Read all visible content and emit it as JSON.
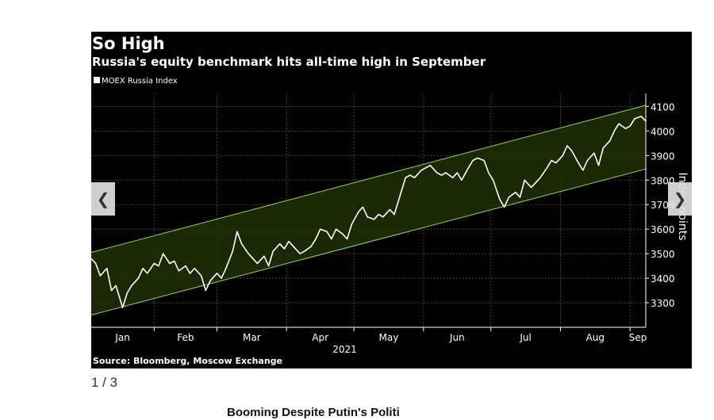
{
  "colors": {
    "panel_bg": "#000000",
    "line": "#ffffff",
    "channel_fill": "#1e2e08",
    "channel_border": "#9ccf7a",
    "grid": "#6a6a6a",
    "text": "#ffffff"
  },
  "slideshow": {
    "prev_icon": "chevron-left-icon",
    "next_icon": "chevron-right-icon",
    "counter": "1 / 3",
    "next_headline": "Booming Despite Putin's Politi"
  },
  "chart_data": {
    "type": "line",
    "title": "So High",
    "subtitle": "Russia's equity benchmark hits all-time high in September",
    "source": "Source: Bloomberg, Moscow Exchange",
    "xlabel": "2021",
    "ylabel": "Index points",
    "ylim": [
      3200,
      4140
    ],
    "yticks": [
      3300,
      3400,
      3500,
      3600,
      3700,
      3800,
      3900,
      4000,
      4100
    ],
    "xlim": [
      "2021-01-04",
      "2021-09-08"
    ],
    "xticks": [
      {
        "label": "Jan",
        "date": "2021-01-01"
      },
      {
        "label": "Feb",
        "date": "2021-02-01"
      },
      {
        "label": "Mar",
        "date": "2021-03-01"
      },
      {
        "label": "Apr",
        "date": "2021-04-01"
      },
      {
        "label": "May",
        "date": "2021-05-01"
      },
      {
        "label": "Jun",
        "date": "2021-06-01"
      },
      {
        "label": "Jul",
        "date": "2021-07-01"
      },
      {
        "label": "Aug",
        "date": "2021-08-01"
      },
      {
        "label": "Sep",
        "date": "2021-09-01"
      }
    ],
    "grid": true,
    "legend": "top-left",
    "channel": {
      "upper": [
        [
          "2021-01-04",
          3505
        ],
        [
          "2021-09-08",
          4105
        ]
      ],
      "lower": [
        [
          "2021-01-04",
          3250
        ],
        [
          "2021-09-08",
          3845
        ]
      ]
    },
    "series": [
      {
        "name": "MOEX Russia Index",
        "points": [
          [
            "2021-01-04",
            3480
          ],
          [
            "2021-01-06",
            3460
          ],
          [
            "2021-01-08",
            3410
          ],
          [
            "2021-01-11",
            3440
          ],
          [
            "2021-01-13",
            3350
          ],
          [
            "2021-01-15",
            3370
          ],
          [
            "2021-01-18",
            3280
          ],
          [
            "2021-01-20",
            3340
          ],
          [
            "2021-01-22",
            3370
          ],
          [
            "2021-01-25",
            3400
          ],
          [
            "2021-01-27",
            3440
          ],
          [
            "2021-01-29",
            3420
          ],
          [
            "2021-02-01",
            3460
          ],
          [
            "2021-02-03",
            3450
          ],
          [
            "2021-02-05",
            3500
          ],
          [
            "2021-02-08",
            3460
          ],
          [
            "2021-02-10",
            3470
          ],
          [
            "2021-02-12",
            3430
          ],
          [
            "2021-02-15",
            3450
          ],
          [
            "2021-02-17",
            3420
          ],
          [
            "2021-02-19",
            3440
          ],
          [
            "2021-02-22",
            3410
          ],
          [
            "2021-02-24",
            3350
          ],
          [
            "2021-02-26",
            3390
          ],
          [
            "2021-03-01",
            3420
          ],
          [
            "2021-03-03",
            3400
          ],
          [
            "2021-03-05",
            3440
          ],
          [
            "2021-03-08",
            3510
          ],
          [
            "2021-03-10",
            3590
          ],
          [
            "2021-03-12",
            3540
          ],
          [
            "2021-03-15",
            3500
          ],
          [
            "2021-03-17",
            3480
          ],
          [
            "2021-03-19",
            3460
          ],
          [
            "2021-03-22",
            3490
          ],
          [
            "2021-03-24",
            3450
          ],
          [
            "2021-03-26",
            3510
          ],
          [
            "2021-03-29",
            3540
          ],
          [
            "2021-03-31",
            3520
          ],
          [
            "2021-04-02",
            3550
          ],
          [
            "2021-04-05",
            3520
          ],
          [
            "2021-04-07",
            3500
          ],
          [
            "2021-04-09",
            3510
          ],
          [
            "2021-04-12",
            3530
          ],
          [
            "2021-04-14",
            3560
          ],
          [
            "2021-04-16",
            3600
          ],
          [
            "2021-04-19",
            3590
          ],
          [
            "2021-04-21",
            3560
          ],
          [
            "2021-04-23",
            3600
          ],
          [
            "2021-04-26",
            3580
          ],
          [
            "2021-04-28",
            3560
          ],
          [
            "2021-04-30",
            3620
          ],
          [
            "2021-05-03",
            3670
          ],
          [
            "2021-05-05",
            3690
          ],
          [
            "2021-05-07",
            3650
          ],
          [
            "2021-05-10",
            3640
          ],
          [
            "2021-05-12",
            3660
          ],
          [
            "2021-05-14",
            3650
          ],
          [
            "2021-05-17",
            3680
          ],
          [
            "2021-05-19",
            3660
          ],
          [
            "2021-05-21",
            3720
          ],
          [
            "2021-05-24",
            3810
          ],
          [
            "2021-05-26",
            3820
          ],
          [
            "2021-05-28",
            3810
          ],
          [
            "2021-05-31",
            3840
          ],
          [
            "2021-06-02",
            3850
          ],
          [
            "2021-06-04",
            3860
          ],
          [
            "2021-06-07",
            3830
          ],
          [
            "2021-06-09",
            3820
          ],
          [
            "2021-06-11",
            3830
          ],
          [
            "2021-06-14",
            3810
          ],
          [
            "2021-06-16",
            3830
          ],
          [
            "2021-06-18",
            3800
          ],
          [
            "2021-06-21",
            3850
          ],
          [
            "2021-06-23",
            3880
          ],
          [
            "2021-06-25",
            3890
          ],
          [
            "2021-06-28",
            3880
          ],
          [
            "2021-06-30",
            3830
          ],
          [
            "2021-07-02",
            3800
          ],
          [
            "2021-07-05",
            3720
          ],
          [
            "2021-07-07",
            3690
          ],
          [
            "2021-07-09",
            3730
          ],
          [
            "2021-07-12",
            3750
          ],
          [
            "2021-07-14",
            3730
          ],
          [
            "2021-07-16",
            3800
          ],
          [
            "2021-07-19",
            3770
          ],
          [
            "2021-07-21",
            3790
          ],
          [
            "2021-07-23",
            3810
          ],
          [
            "2021-07-26",
            3850
          ],
          [
            "2021-07-28",
            3880
          ],
          [
            "2021-07-30",
            3870
          ],
          [
            "2021-08-02",
            3900
          ],
          [
            "2021-08-04",
            3940
          ],
          [
            "2021-08-06",
            3920
          ],
          [
            "2021-08-09",
            3870
          ],
          [
            "2021-08-11",
            3840
          ],
          [
            "2021-08-13",
            3880
          ],
          [
            "2021-08-16",
            3910
          ],
          [
            "2021-08-18",
            3860
          ],
          [
            "2021-08-20",
            3930
          ],
          [
            "2021-08-23",
            3960
          ],
          [
            "2021-08-25",
            4000
          ],
          [
            "2021-08-27",
            4030
          ],
          [
            "2021-08-30",
            4010
          ],
          [
            "2021-09-01",
            4020
          ],
          [
            "2021-09-03",
            4050
          ],
          [
            "2021-09-06",
            4060
          ],
          [
            "2021-09-08",
            4040
          ]
        ]
      }
    ]
  }
}
